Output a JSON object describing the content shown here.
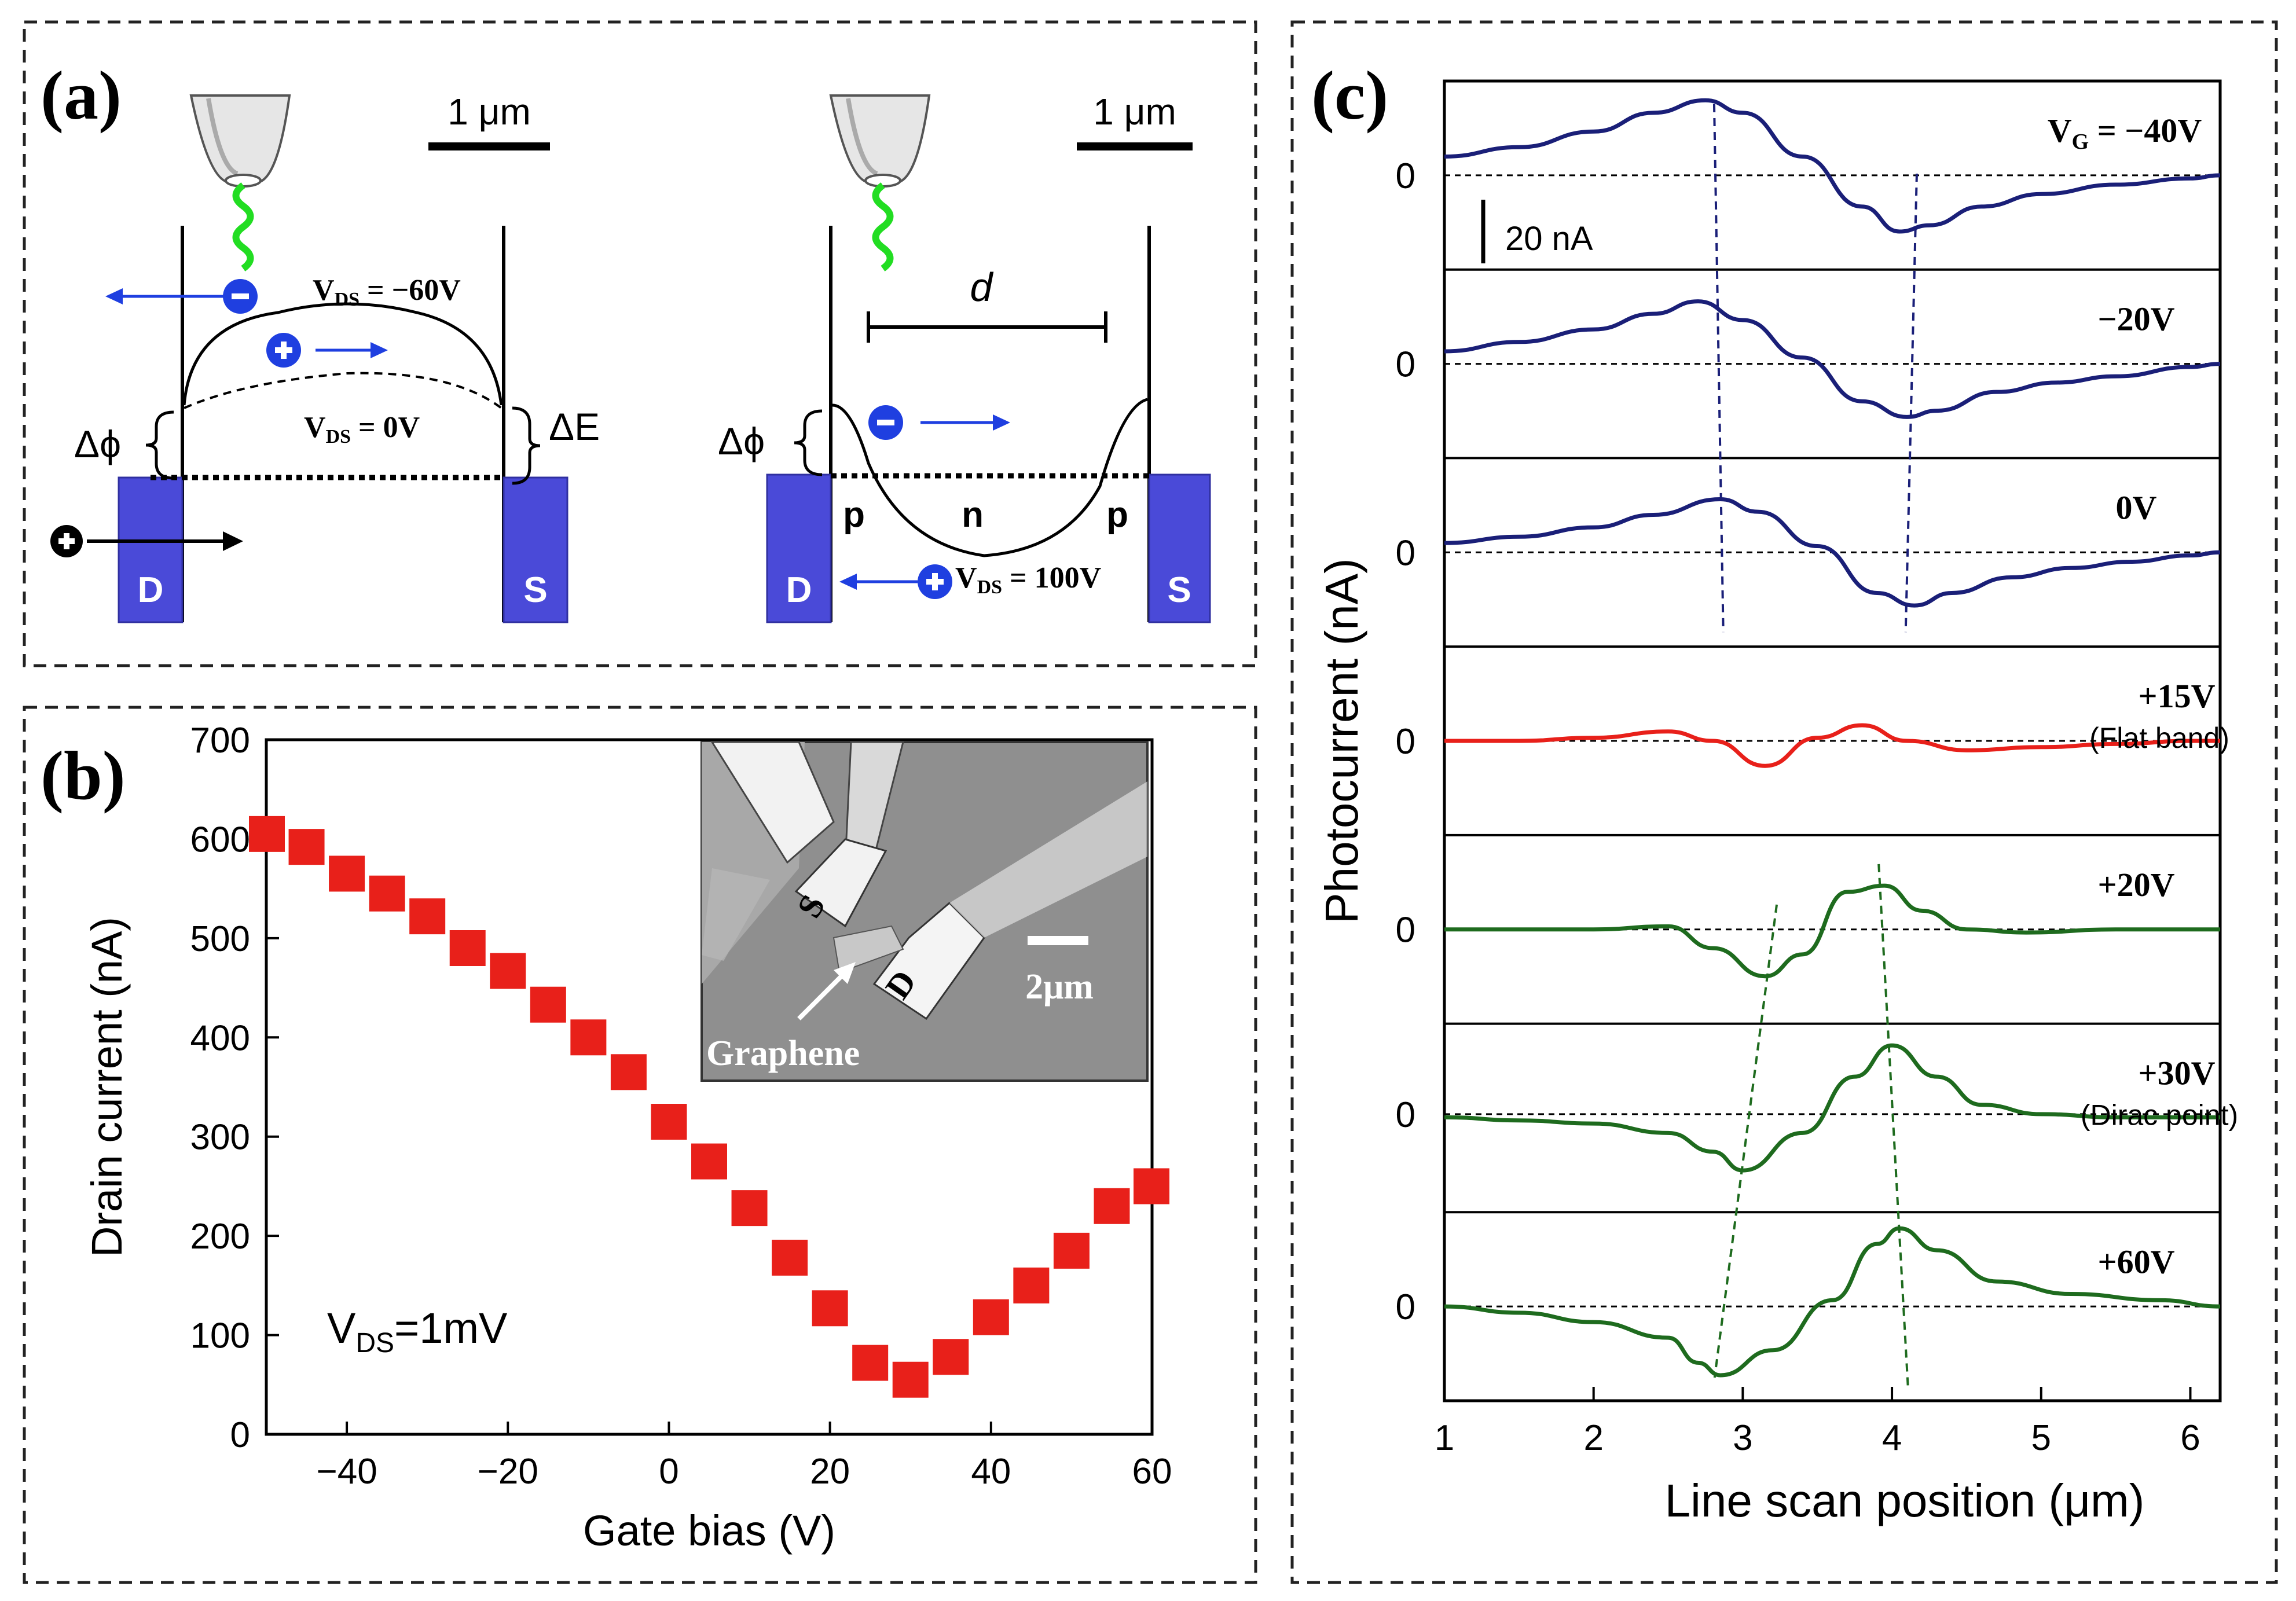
{
  "panels": {
    "a": {
      "label": "(a)",
      "scale_left": "1 μm",
      "scale_right": "1 μm",
      "left": {
        "vds_neg": "V",
        "vds_neg_sub": "DS",
        "vds_neg_val": " = −60V",
        "vds_zero": "V",
        "vds_zero_sub": "DS",
        "vds_zero_val": " = 0V",
        "delta_phi": "Δϕ",
        "delta_e": "ΔE",
        "drain": "D",
        "source": "S"
      },
      "right": {
        "d_label": "d",
        "delta_phi": "Δϕ",
        "p1": "p",
        "n": "n",
        "p2": "p",
        "vds": "V",
        "vds_sub": "DS",
        "vds_val": " = 100V",
        "drain": "D",
        "source": "S"
      }
    },
    "b": {
      "label": "(b)",
      "vds_annotation": "V",
      "vds_annotation_sub": "DS",
      "vds_annotation_val": "=1mV",
      "inset": {
        "source": "S",
        "drain": "D",
        "scale": "2μm",
        "graphene": "Graphene"
      }
    },
    "c": {
      "label": "(c)",
      "scale_bar": "20 nA",
      "trace_labels": [
        {
          "text": "V",
          "sub": "G",
          "val": " = −40V"
        },
        {
          "text": "−20V"
        },
        {
          "text": "0V"
        },
        {
          "text": "+15V",
          "note": "(Flat band)"
        },
        {
          "text": "+20V"
        },
        {
          "text": "+30V",
          "note": "(Dirac point)"
        },
        {
          "text": "+60V"
        }
      ],
      "zero_label": "0"
    }
  },
  "colors": {
    "blue_trace": "#1a1f78",
    "red_trace": "#e8201a",
    "green_trace": "#1e6b1e",
    "marker": "#e8201a",
    "electrode": "#4a4ad8",
    "arrow": "#1f3fe0"
  },
  "chart_data": [
    {
      "type": "scatter",
      "panel": "b",
      "title": "",
      "xlabel": "Gate bias (V)",
      "ylabel": "Drain current (nA)",
      "xlim": [
        -50,
        60
      ],
      "ylim": [
        0,
        700
      ],
      "xticks": [
        -40,
        -20,
        0,
        20,
        40,
        60
      ],
      "xtick_labels": [
        "−40",
        "−20",
        "0",
        "20",
        "40",
        "60"
      ],
      "yticks": [
        0,
        100,
        200,
        300,
        400,
        500,
        600,
        700
      ],
      "ytick_labels": [
        "0",
        "100",
        "200",
        "300",
        "400",
        "500",
        "600",
        "700"
      ],
      "x": [
        -50,
        -45,
        -40,
        -35,
        -30,
        -25,
        -20,
        -15,
        -10,
        -5,
        0,
        5,
        10,
        15,
        20,
        25,
        30,
        35,
        40,
        45,
        50,
        55,
        60
      ],
      "y": [
        605,
        592,
        565,
        545,
        522,
        490,
        467,
        433,
        400,
        365,
        315,
        275,
        228,
        178,
        127,
        72,
        55,
        78,
        118,
        150,
        185,
        230,
        250
      ]
    },
    {
      "type": "line",
      "panel": "c",
      "xlabel": "Line scan position (μm)",
      "ylabel": "Photocurrent (nA)",
      "xlim": [
        1,
        6.2
      ],
      "xticks": [
        1,
        2,
        3,
        4,
        5,
        6
      ],
      "xtick_labels": [
        "1",
        "2",
        "3",
        "4",
        "5",
        "6"
      ],
      "series": [
        {
          "name": "−40V",
          "x": [
            1.0,
            1.5,
            2.0,
            2.4,
            2.75,
            3.0,
            3.4,
            3.8,
            4.05,
            4.25,
            4.6,
            5.0,
            5.5,
            6.0,
            6.2
          ],
          "y": [
            6,
            9,
            14,
            20,
            24,
            20,
            6,
            -10,
            -18,
            -16,
            -10,
            -6,
            -3,
            -1,
            0
          ]
        },
        {
          "name": "−20V",
          "x": [
            1.0,
            1.5,
            2.0,
            2.4,
            2.7,
            3.0,
            3.4,
            3.8,
            4.1,
            4.3,
            4.7,
            5.1,
            5.5,
            6.0,
            6.2
          ],
          "y": [
            4,
            7,
            11,
            16,
            20,
            14,
            2,
            -12,
            -17,
            -15,
            -9,
            -6,
            -4,
            -1,
            0
          ]
        },
        {
          "name": "0V",
          "x": [
            1.0,
            1.5,
            2.0,
            2.4,
            2.85,
            3.1,
            3.5,
            3.9,
            4.15,
            4.4,
            4.8,
            5.2,
            5.6,
            6.0,
            6.2
          ],
          "y": [
            3,
            5,
            8,
            12,
            17,
            13,
            2,
            -13,
            -17,
            -13,
            -8,
            -5,
            -3,
            -1,
            0
          ]
        },
        {
          "name": "+15V",
          "x": [
            1.0,
            1.5,
            2.0,
            2.5,
            2.8,
            3.15,
            3.5,
            3.8,
            4.1,
            4.5,
            5.0,
            5.5,
            6.0,
            6.2
          ],
          "y": [
            0,
            0,
            1,
            3,
            0,
            -8,
            1,
            5,
            0,
            -3,
            -2,
            -1,
            0,
            0
          ]
        },
        {
          "name": "+20V",
          "x": [
            1.0,
            1.5,
            2.0,
            2.5,
            2.8,
            3.15,
            3.4,
            3.7,
            3.95,
            4.2,
            4.5,
            4.9,
            5.5,
            6.0,
            6.2
          ],
          "y": [
            0,
            0,
            0,
            1,
            -6,
            -15,
            -8,
            12,
            14,
            6,
            0,
            -1,
            0,
            0,
            0
          ]
        },
        {
          "name": "+30V",
          "x": [
            1.0,
            1.5,
            2.0,
            2.5,
            2.8,
            3.0,
            3.4,
            3.75,
            4.0,
            4.3,
            4.6,
            5.0,
            5.5,
            6.0,
            6.2
          ],
          "y": [
            -1,
            -2,
            -3,
            -6,
            -12,
            -18,
            -6,
            12,
            22,
            12,
            3,
            0,
            -1,
            -1,
            -1
          ]
        },
        {
          "name": "+60V",
          "x": [
            1.0,
            1.5,
            2.0,
            2.5,
            2.7,
            2.85,
            3.2,
            3.6,
            3.9,
            4.05,
            4.3,
            4.7,
            5.2,
            5.8,
            6.2
          ],
          "y": [
            0,
            -2,
            -5,
            -10,
            -18,
            -22,
            -14,
            2,
            20,
            25,
            18,
            8,
            4,
            2,
            0
          ]
        }
      ]
    }
  ]
}
